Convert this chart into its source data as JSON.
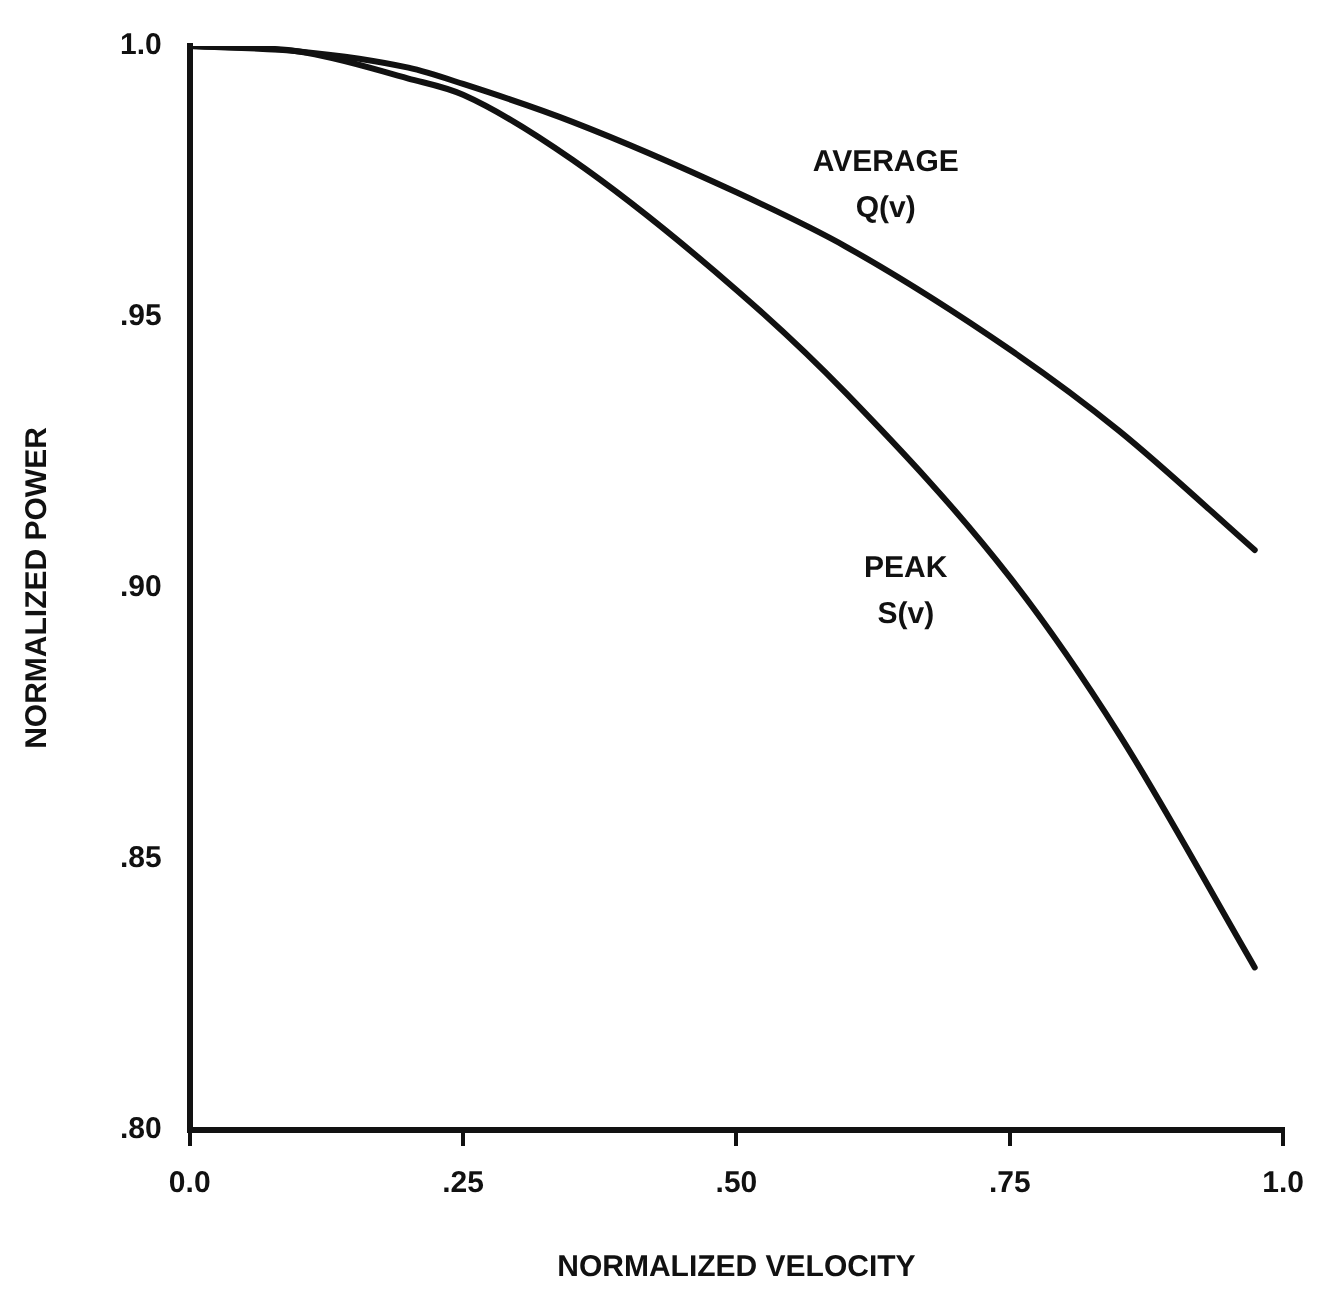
{
  "chart_data": {
    "type": "line",
    "xlabel": "NORMALIZED VELOCITY",
    "ylabel": "NORMALIZED POWER",
    "xlim": [
      0,
      1.0
    ],
    "xticks": [
      {
        "value": 0,
        "label": "0.0"
      },
      {
        "value": 0.25,
        "label": ".25"
      },
      {
        "value": 0.5,
        "label": ".50"
      },
      {
        "value": 0.75,
        "label": ".75"
      },
      {
        "value": 1.0,
        "label": "1.0"
      }
    ],
    "ylim": [
      0.8,
      1.0
    ],
    "yticks": [
      {
        "value": 0.8,
        "label": ".80"
      },
      {
        "value": 0.85,
        "label": ".85"
      },
      {
        "value": 0.9,
        "label": ".90"
      },
      {
        "value": 0.95,
        "label": ".95"
      },
      {
        "value": 1.0,
        "label": "1.0"
      }
    ],
    "grid": false,
    "legend": false,
    "marker": "none",
    "line_style": "solid",
    "series": [
      {
        "name": "AVERAGE Q(v)",
        "color": "#111111",
        "x": [
          0,
          0.1,
          0.2,
          0.25,
          0.35,
          0.5,
          0.6,
          0.75,
          0.85,
          0.974
        ],
        "values": [
          1.0,
          0.999,
          0.996,
          0.993,
          0.986,
          0.973,
          0.963,
          0.944,
          0.929,
          0.907
        ]
      },
      {
        "name": "PEAK S(v)",
        "color": "#111111",
        "x": [
          0,
          0.1,
          0.2,
          0.25,
          0.35,
          0.5,
          0.6,
          0.75,
          0.85,
          0.974
        ],
        "values": [
          1.0,
          0.999,
          0.994,
          0.991,
          0.979,
          0.955,
          0.936,
          0.902,
          0.873,
          0.83
        ]
      }
    ]
  }
}
